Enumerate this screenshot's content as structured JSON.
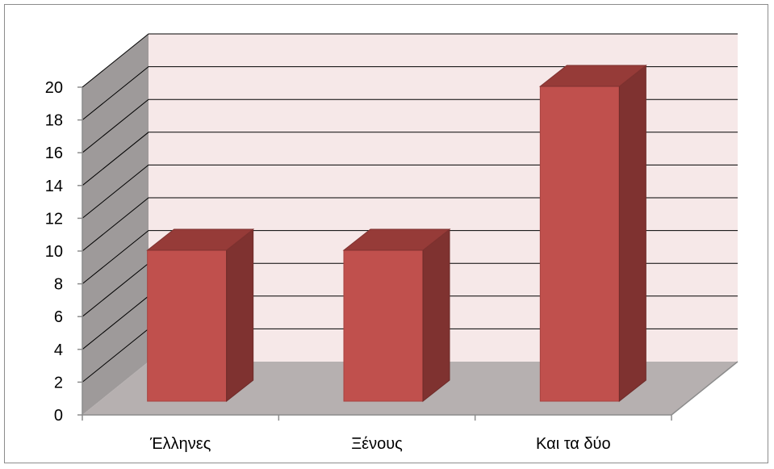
{
  "chart_data": {
    "type": "bar",
    "title": "",
    "xlabel": "",
    "ylabel": "",
    "categories": [
      "Έλληνες",
      "Ξένους",
      "Και τα δύο"
    ],
    "series": [
      {
        "values": [
          10,
          10,
          20
        ]
      }
    ],
    "ylim": [
      0,
      20
    ],
    "y_ticks": [
      "0",
      "2",
      "4",
      "6",
      "8",
      "10",
      "12",
      "14",
      "16",
      "18",
      "20"
    ],
    "grid": true,
    "legend": "none",
    "three_d": true,
    "colors": {
      "bar_front": "#c0504d",
      "bar_side": "#7f3230",
      "bar_top": "#963b38",
      "back_wall": "#f6e8e8",
      "side_wall": "#9e9a9a",
      "floor": "#b6b0b0",
      "gridline": "#000000",
      "axis": "#8c8c8c"
    }
  }
}
